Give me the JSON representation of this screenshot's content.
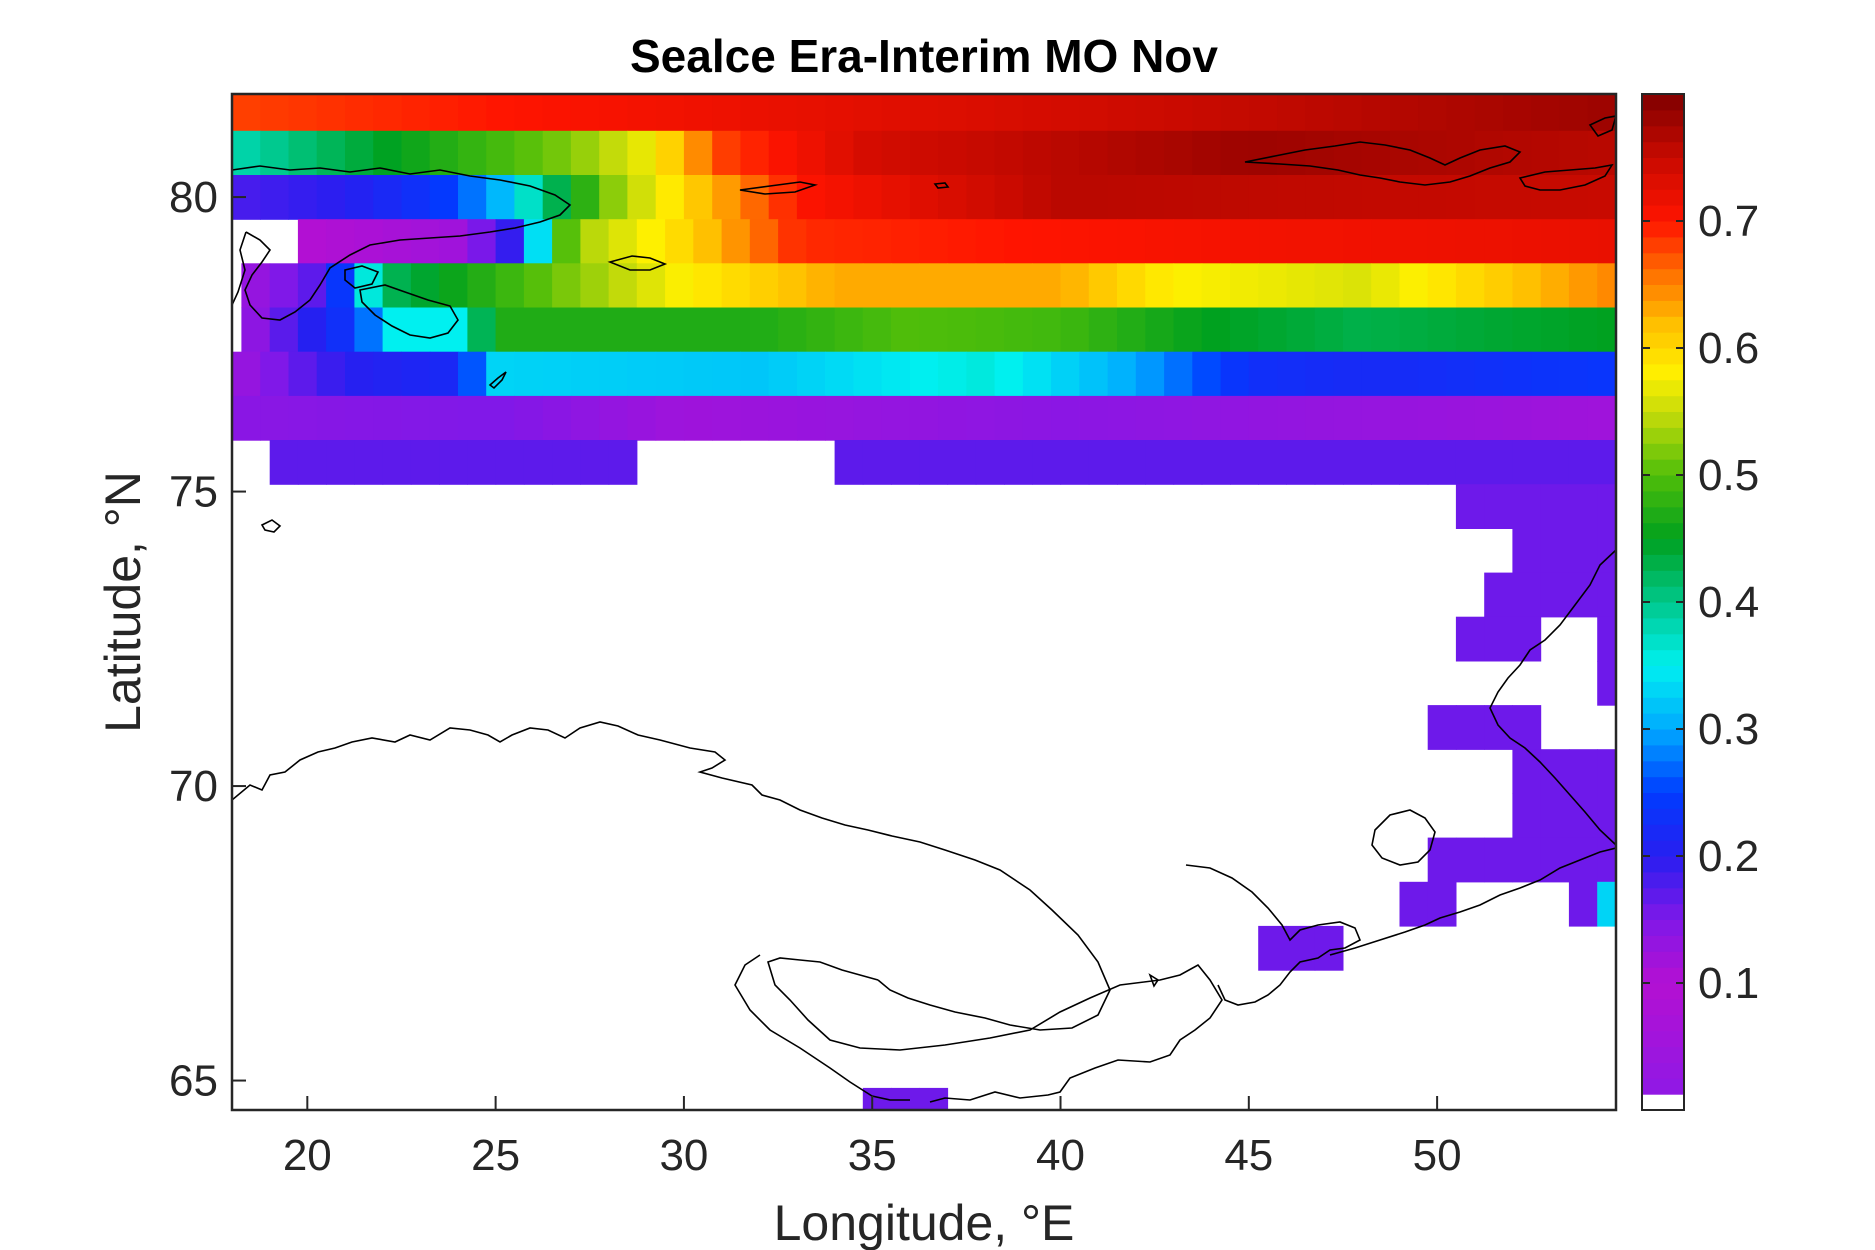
{
  "chart_data": {
    "type": "heatmap",
    "title": "Sealce Era-Interim MO Nov",
    "xlabel": "Longitude, °E",
    "ylabel": "Latitude, °N",
    "xlim": [
      18,
      54.75
    ],
    "ylim": [
      64.5,
      81.75
    ],
    "x_ticks": [
      "20",
      "25",
      "30",
      "35",
      "40",
      "45",
      "50"
    ],
    "y_ticks": [
      "65",
      "70",
      "75",
      "80"
    ],
    "colorbar": {
      "ticks": [
        "0.1",
        "0.2",
        "0.3",
        "0.4",
        "0.5",
        "0.6",
        "0.7"
      ],
      "range": [
        0,
        0.8
      ],
      "colormap": "jet-with-purple-low",
      "lowest_color": "#ffffff"
    },
    "grid_step_deg": 0.75,
    "rows": [
      {
        "lat": 81.5,
        "segments": [
          {
            "lon": [
              18,
              54.75
            ],
            "v": [
              0.68,
              0.78
            ]
          }
        ]
      },
      {
        "lat": 80.75,
        "segments": [
          {
            "lon": [
              18,
              54.75
            ],
            "v": [
              0.38,
              0.78
            ],
            "knots": [
              [
                18,
                0.38
              ],
              [
                21,
                0.43
              ],
              [
                23.5,
                0.47
              ],
              [
                27,
                0.52
              ],
              [
                29,
                0.57
              ],
              [
                31,
                0.68
              ],
              [
                35,
                0.74
              ],
              [
                45,
                0.78
              ],
              [
                54.75,
                0.76
              ]
            ]
          }
        ]
      },
      {
        "lat": 80.0,
        "segments": [
          {
            "lon": [
              18,
              54.75
            ],
            "v": [
              0.2,
              0.75
            ],
            "knots": [
              [
                18,
                0.18
              ],
              [
                21,
                0.2
              ],
              [
                23.5,
                0.24
              ],
              [
                25,
                0.3
              ],
              [
                26.5,
                0.42
              ],
              [
                28,
                0.52
              ],
              [
                30,
                0.6
              ],
              [
                33,
                0.7
              ],
              [
                40,
                0.76
              ],
              [
                54.75,
                0.75
              ]
            ]
          }
        ]
      },
      {
        "lat": 79.25,
        "segments": [
          {
            "lon": [
              19.75,
              54.75
            ],
            "v": [
              0.1,
              0.72
            ],
            "knots": [
              [
                19.75,
                0.1
              ],
              [
                24,
                0.12
              ],
              [
                25.5,
                0.2
              ],
              [
                27,
                0.53
              ],
              [
                30,
                0.6
              ],
              [
                33,
                0.69
              ],
              [
                45,
                0.71
              ],
              [
                54.75,
                0.72
              ]
            ]
          }
        ]
      },
      {
        "lat": 78.5,
        "segments": [
          {
            "lon": [
              18.25,
              54.75
            ],
            "v": [
              0.1,
              0.65
            ],
            "knots": [
              [
                18.25,
                0.12
              ],
              [
                20.5,
                0.18
              ],
              [
                22,
                0.42
              ],
              [
                26,
                0.5
              ],
              [
                30,
                0.58
              ],
              [
                34,
                0.63
              ],
              [
                40,
                0.63
              ],
              [
                43,
                0.58
              ],
              [
                48,
                0.56
              ],
              [
                54.75,
                0.65
              ]
            ]
          }
        ]
      },
      {
        "lat": 77.75,
        "segments": [
          {
            "lon": [
              18.25,
              54.75
            ],
            "v": [
              0.12,
              0.5
            ],
            "knots": [
              [
                18.25,
                0.12
              ],
              [
                20,
                0.2
              ],
              [
                21.5,
                0.25
              ],
              [
                22,
                0.35
              ],
              [
                24,
                0.35
              ],
              [
                25,
                0.47
              ],
              [
                32,
                0.47
              ],
              [
                36,
                0.5
              ],
              [
                40,
                0.49
              ],
              [
                44,
                0.45
              ],
              [
                48,
                0.43
              ],
              [
                54.75,
                0.45
              ]
            ]
          }
        ]
      },
      {
        "lat": 77.0,
        "segments": [
          {
            "lon": [
              18,
              54.75
            ],
            "v": [
              0.12,
              0.35
            ],
            "knots": [
              [
                18,
                0.12
              ],
              [
                21,
                0.2
              ],
              [
                24,
                0.22
              ],
              [
                25,
                0.33
              ],
              [
                32,
                0.32
              ],
              [
                38,
                0.36
              ],
              [
                42,
                0.3
              ],
              [
                45,
                0.23
              ],
              [
                48,
                0.22
              ],
              [
                54.75,
                0.24
              ]
            ]
          }
        ]
      },
      {
        "lat": 76.25,
        "segments": [
          {
            "lon": [
              18,
              54.75
            ],
            "v": [
              0.1,
              0.17
            ],
            "knots": [
              [
                18,
                0.14
              ],
              [
                25,
                0.15
              ],
              [
                30,
                0.12
              ],
              [
                40,
                0.14
              ],
              [
                54.75,
                0.12
              ]
            ]
          }
        ]
      },
      {
        "lat": 75.5,
        "segments": [
          {
            "lon": [
              19.0,
              28.75
            ],
            "v": [
              0.17,
              0.17
            ]
          },
          {
            "lon": [
              34.0,
              54.75
            ],
            "v": [
              0.17,
              0.17
            ]
          }
        ]
      },
      {
        "lat": 74.75,
        "segments": [
          {
            "lon": [
              50.5,
              54.75
            ],
            "v": [
              0.16,
              0.16
            ]
          }
        ]
      },
      {
        "lat": 74.0,
        "segments": [
          {
            "lon": [
              52.0,
              54.75
            ],
            "v": [
              0.16,
              0.16
            ]
          }
        ]
      },
      {
        "lat": 73.25,
        "segments": [
          {
            "lon": [
              51.25,
              54.75
            ],
            "v": [
              0.16,
              0.16
            ]
          }
        ]
      },
      {
        "lat": 72.5,
        "segments": [
          {
            "lon": [
              50.5,
              52.75
            ],
            "v": [
              0.16,
              0.16
            ]
          },
          {
            "lon": [
              54.25,
              54.75
            ],
            "v": [
              0.16,
              0.16
            ]
          }
        ]
      },
      {
        "lat": 71.75,
        "segments": [
          {
            "lon": [
              54.25,
              54.75
            ],
            "v": [
              0.16,
              0.16
            ]
          }
        ]
      },
      {
        "lat": 71.0,
        "segments": [
          {
            "lon": [
              49.75,
              52.75
            ],
            "v": [
              0.16,
              0.16
            ]
          }
        ]
      },
      {
        "lat": 70.25,
        "segments": [
          {
            "lon": [
              52.0,
              54.75
            ],
            "v": [
              0.16,
              0.16
            ]
          }
        ]
      },
      {
        "lat": 69.5,
        "segments": [
          {
            "lon": [
              52.0,
              54.75
            ],
            "v": [
              0.16,
              0.16
            ]
          }
        ]
      },
      {
        "lat": 68.75,
        "segments": [
          {
            "lon": [
              49.75,
              54.75
            ],
            "v": [
              0.16,
              0.16
            ]
          }
        ]
      },
      {
        "lat": 68.0,
        "segments": [
          {
            "lon": [
              49.0,
              50.5
            ],
            "v": [
              0.16,
              0.16
            ]
          },
          {
            "lon": [
              53.5,
              54.25
            ],
            "v": [
              0.16,
              0.16
            ]
          },
          {
            "lon": [
              54.25,
              54.75
            ],
            "v": [
              0.33,
              0.33
            ]
          }
        ]
      },
      {
        "lat": 67.25,
        "segments": [
          {
            "lon": [
              45.25,
              47.5
            ],
            "v": [
              0.16,
              0.16
            ]
          }
        ]
      },
      {
        "lat": 64.5,
        "segments": [
          {
            "lon": [
              34.75,
              37.0
            ],
            "v": [
              0.16,
              0.16
            ]
          }
        ]
      }
    ]
  }
}
